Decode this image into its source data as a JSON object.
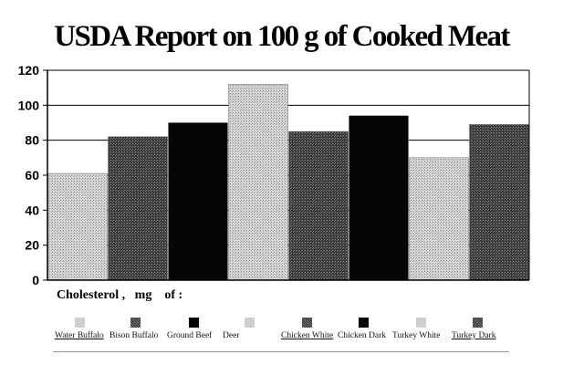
{
  "title": "USDA Report on 100 g of Cooked Meat",
  "cholesterol_label": "Cholesterol ,   mg    of :",
  "colors": {
    "light_gray": "#c8c8c8",
    "dark_gray": "#444444",
    "black": "#050505",
    "grid": "#000000",
    "frame": "#000000"
  },
  "legend": [
    {
      "label": "Water Buffalo",
      "pattern": "light",
      "underline": true
    },
    {
      "label": "Bison Buffalo",
      "pattern": "dark",
      "underline": false
    },
    {
      "label": "Ground Beef",
      "pattern": "black",
      "underline": false
    },
    {
      "label": "Deer",
      "pattern": "light",
      "underline": false
    },
    {
      "label": "Chicken White",
      "pattern": "dark",
      "underline": true
    },
    {
      "label": "Chicken Dark",
      "pattern": "black",
      "underline": false
    },
    {
      "label": "Turkey White",
      "pattern": "light",
      "underline": false
    },
    {
      "label": "Turkey Dark",
      "pattern": "dark",
      "underline": true
    }
  ],
  "chart_data": {
    "type": "bar",
    "title": "USDA Report on 100 g of Cooked Meat",
    "xlabel": "",
    "ylabel": "",
    "categories": [
      "Water Buffalo",
      "Bison Buffalo",
      "Ground Beef",
      "Deer",
      "Chicken White",
      "Chicken Dark",
      "Turkey White",
      "Turkey Dark"
    ],
    "values": [
      61,
      82,
      90,
      112,
      85,
      94,
      70,
      89
    ],
    "patterns": [
      "light",
      "dark",
      "black",
      "light",
      "dark",
      "black",
      "light",
      "dark"
    ],
    "ylim": [
      0,
      120
    ],
    "yticks": [
      0,
      20,
      40,
      60,
      80,
      100,
      120
    ],
    "grid": true,
    "legend_position": "bottom"
  }
}
